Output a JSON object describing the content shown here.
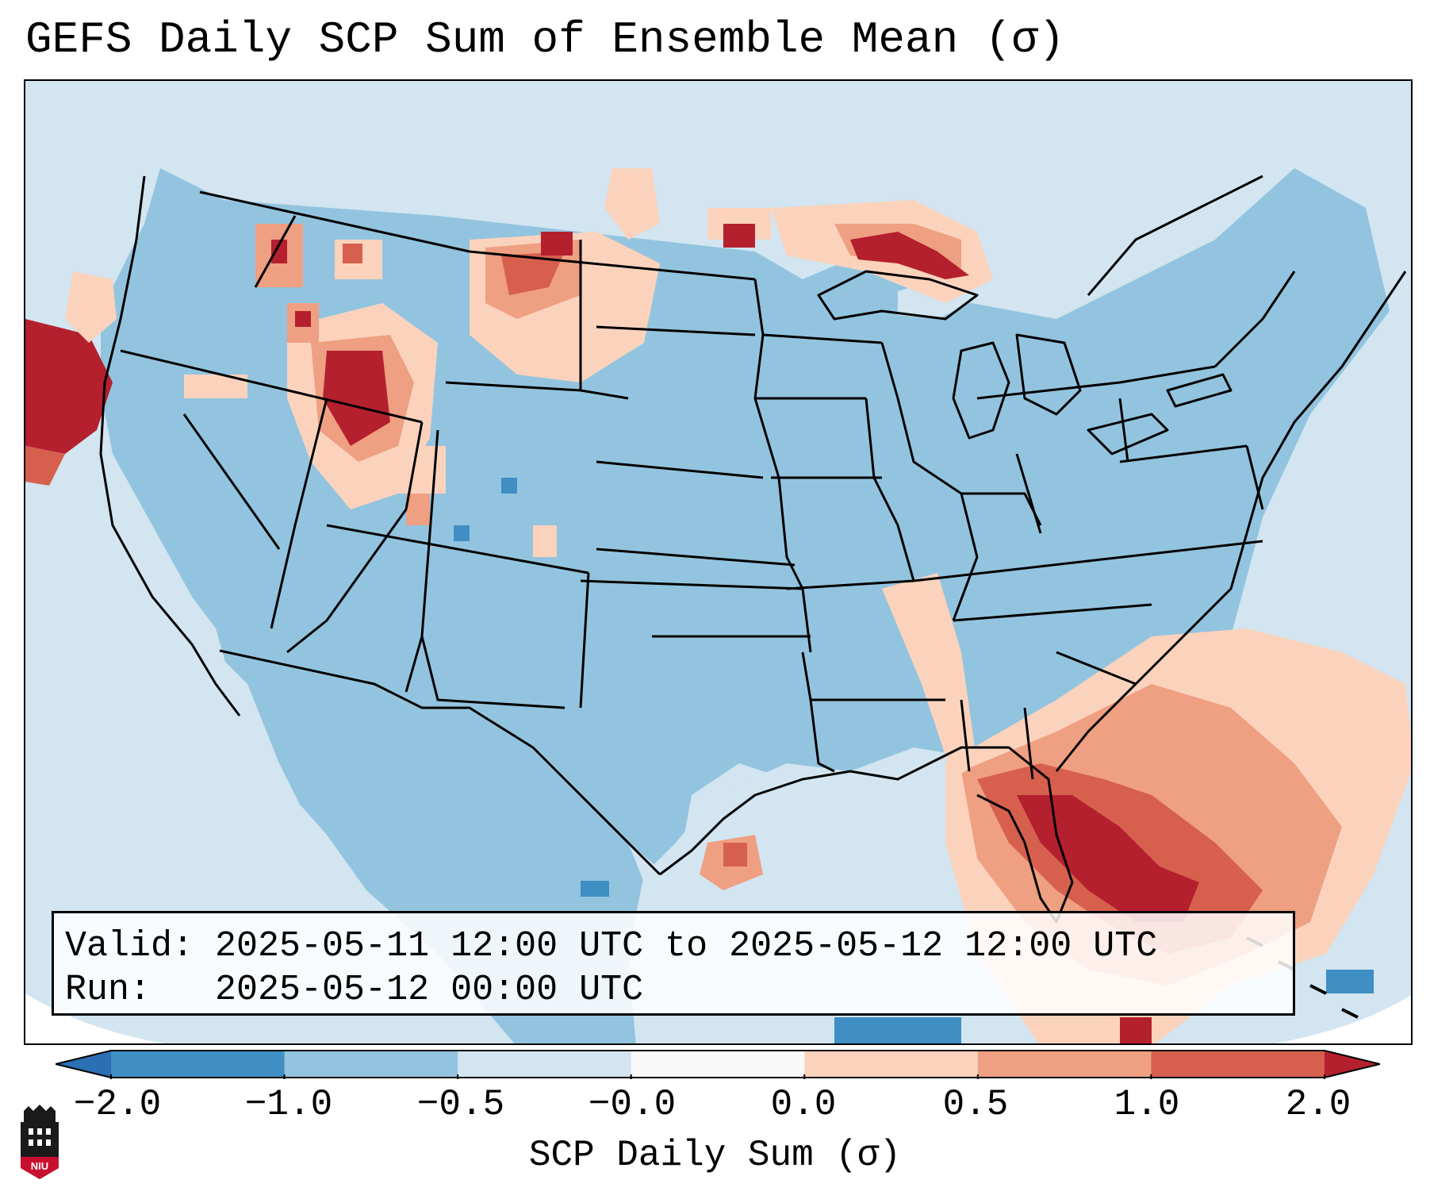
{
  "title": "GEFS Daily SCP Sum of Ensemble Mean (σ)",
  "info_box": {
    "valid_line": "Valid: 2025-05-11 12:00 UTC to 2025-05-12 12:00 UTC",
    "run_line": "Run:   2025-05-12 00:00 UTC"
  },
  "colorbar": {
    "label": "SCP Daily Sum (σ)",
    "tick_labels": [
      "−2.0",
      "−1.0",
      "−0.5",
      "−0.0",
      "0.0",
      "0.5",
      "1.0",
      "2.0"
    ],
    "colors": [
      "#2b6fb5",
      "#3f8ec4",
      "#93c4df",
      "#d2e5f0",
      "#f9f9f9",
      "#fbd3bd",
      "#ef9f82",
      "#d6604d",
      "#b4202e"
    ],
    "extend": "both"
  },
  "map": {
    "projection": "Lambert conformal, CONUS",
    "ocean_color": "#d2e5f0",
    "land_base_color": "#93c4df",
    "high_values": [
      "Florida & Gulf coast",
      "SE Atlantic offshore",
      "Northern Rockies / Idaho",
      "N. California coast",
      "Lake Superior",
      "Montana plains"
    ],
    "low_values": [
      "Gulf of Mexico south",
      "Northern Mexico"
    ]
  },
  "logo_text": "NIU"
}
